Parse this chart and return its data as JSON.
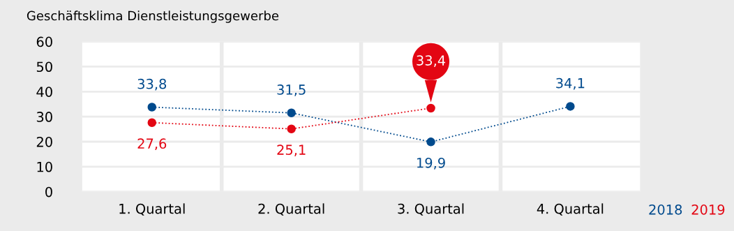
{
  "chart_data": {
    "type": "line",
    "title": "Geschäftsklima Dienstleistungsgewerbe",
    "categories": [
      "1. Quartal",
      "2. Quartal",
      "3. Quartal",
      "4. Quartal"
    ],
    "series": [
      {
        "name": "2018",
        "color": "#004a8d",
        "values": [
          33.8,
          31.5,
          19.9,
          34.1
        ],
        "value_labels": [
          "33,8",
          "31,5",
          "19,9",
          "34,1"
        ]
      },
      {
        "name": "2019",
        "color": "#e30613",
        "values": [
          27.6,
          25.1,
          33.4,
          null
        ],
        "value_labels": [
          "27,6",
          "25,1",
          "33,4",
          null
        ]
      }
    ],
    "ylim": [
      0,
      60
    ],
    "yticks": [
      0,
      10,
      20,
      30,
      40,
      50,
      60
    ],
    "grid": true,
    "legend": "bottom right",
    "marker": "circle",
    "line_style": "dotted"
  }
}
